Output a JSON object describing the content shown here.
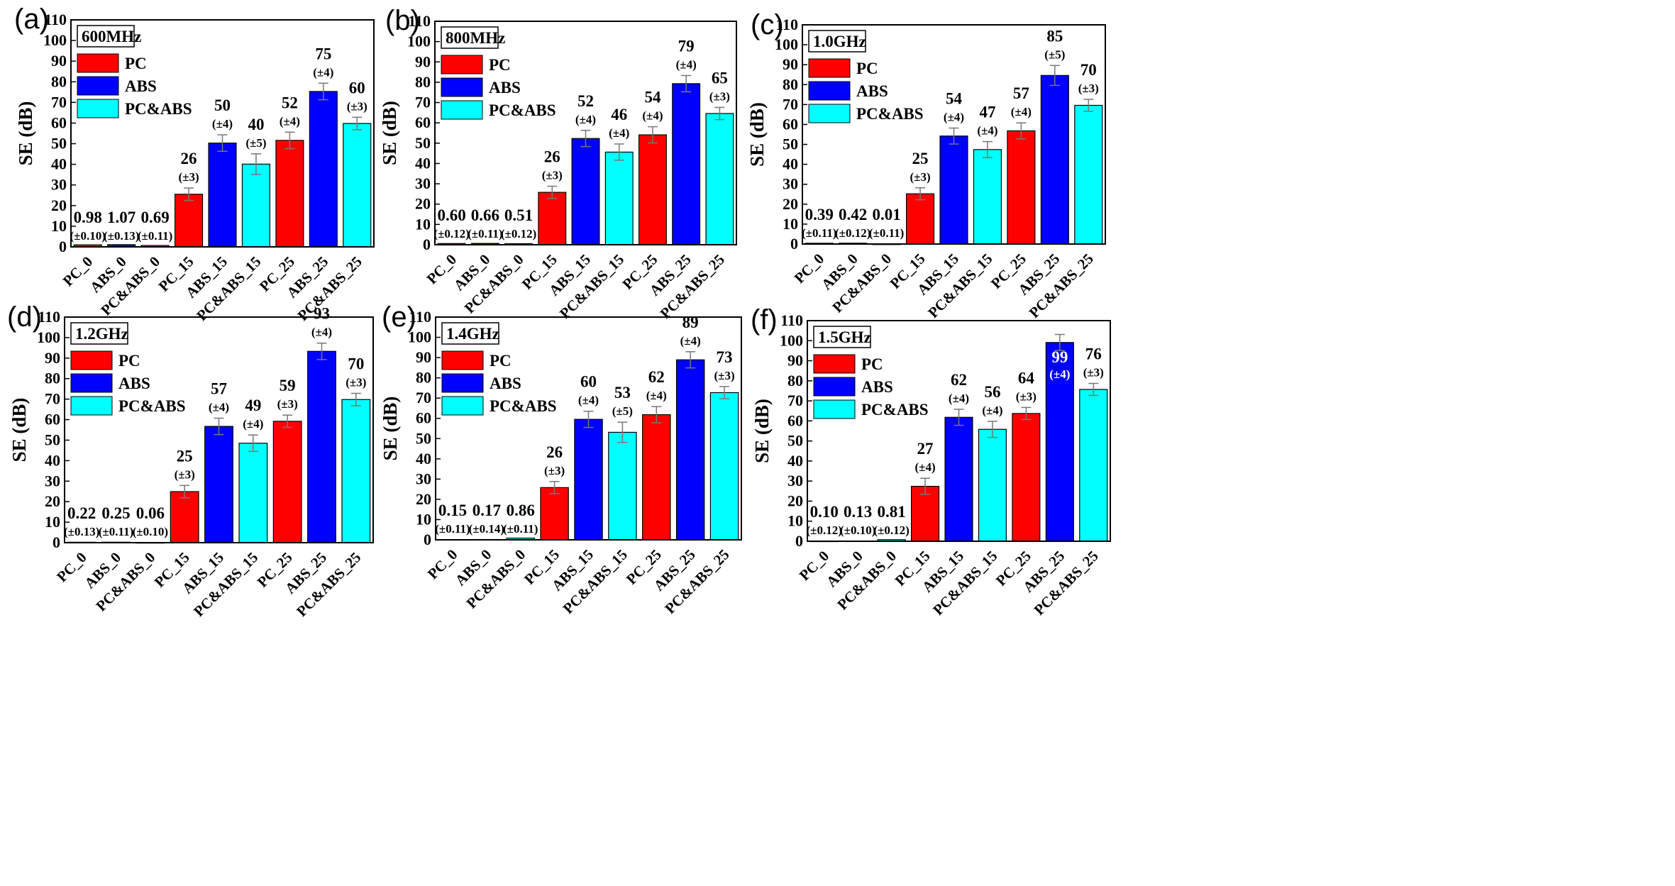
{
  "chart_data": [
    {
      "type": "bar",
      "panel": "(a)",
      "frequency": "600MHz",
      "ylabel": "SE (dB)",
      "ylim": [
        0,
        110
      ],
      "yticks": [
        "0",
        "10",
        "20",
        "30",
        "40",
        "50",
        "60",
        "70",
        "80",
        "90",
        "100",
        "110"
      ],
      "categories": [
        "PC_0",
        "ABS_0",
        "PC&ABS_0",
        "PC_15",
        "ABS_15",
        "PC&ABS_15",
        "PC_25",
        "ABS_25",
        "PC&ABS_25"
      ],
      "materials": [
        "PC",
        "ABS",
        "PC&ABS",
        "PC",
        "ABS",
        "PC&ABS",
        "PC",
        "ABS",
        "PC&ABS"
      ],
      "values": [
        0.98,
        1.07,
        0.69,
        25.5,
        50.3,
        40.1,
        51.6,
        75.3,
        59.8
      ],
      "value_labels": [
        "0.98",
        "1.07",
        "0.69",
        "26",
        "50",
        "40",
        "52",
        "75",
        "60"
      ],
      "error_labels": [
        "(±0.10)",
        "(±0.13)",
        "(±0.11)",
        "(±3)",
        "(±4)",
        "(±5)",
        "(±4)",
        "(±4)",
        "(±3)"
      ],
      "errors": [
        0.1,
        0.13,
        0.11,
        3,
        4,
        5,
        4,
        4,
        3
      ],
      "legend": [
        {
          "name": "PC",
          "color": "#ff0000"
        },
        {
          "name": "ABS",
          "color": "#0000ff"
        },
        {
          "name": "PC&ABS",
          "color": "#00ffff"
        }
      ]
    },
    {
      "type": "bar",
      "panel": "(b)",
      "frequency": "800MHz",
      "ylabel": "SE (dB)",
      "ylim": [
        0,
        110
      ],
      "yticks": [
        "0",
        "10",
        "20",
        "30",
        "40",
        "50",
        "60",
        "70",
        "80",
        "90",
        "100",
        "110"
      ],
      "categories": [
        "PC_0",
        "ABS_0",
        "PC&ABS_0",
        "PC_15",
        "ABS_15",
        "PC&ABS_15",
        "PC_25",
        "ABS_25",
        "PC&ABS_25"
      ],
      "materials": [
        "PC",
        "ABS",
        "PC&ABS",
        "PC",
        "ABS",
        "PC&ABS",
        "PC",
        "ABS",
        "PC&ABS"
      ],
      "values": [
        0.6,
        0.66,
        0.51,
        25.8,
        52.3,
        45.6,
        54.1,
        79.3,
        64.6
      ],
      "value_labels": [
        "0.60",
        "0.66",
        "0.51",
        "26",
        "52",
        "46",
        "54",
        "79",
        "65"
      ],
      "error_labels": [
        "(±0.12)",
        "(±0.11)",
        "(±0.12)",
        "(±3)",
        "(±4)",
        "(±4)",
        "(±4)",
        "(±4)",
        "(±3)"
      ],
      "errors": [
        0.12,
        0.11,
        0.12,
        3,
        4,
        4,
        4,
        4,
        3
      ],
      "legend": [
        {
          "name": "PC",
          "color": "#ff0000"
        },
        {
          "name": "ABS",
          "color": "#0000ff"
        },
        {
          "name": "PC&ABS",
          "color": "#00ffff"
        }
      ]
    },
    {
      "type": "bar",
      "panel": "(c)",
      "frequency": "1.0GHz",
      "ylabel": "SE (dB)",
      "ylim": [
        0,
        110
      ],
      "yticks": [
        "0",
        "10",
        "20",
        "30",
        "40",
        "50",
        "60",
        "70",
        "80",
        "90",
        "100",
        "110"
      ],
      "categories": [
        "PC_0",
        "ABS_0",
        "PC&ABS_0",
        "PC_15",
        "ABS_15",
        "PC&ABS_15",
        "PC_25",
        "ABS_25",
        "PC&ABS_25"
      ],
      "materials": [
        "PC",
        "ABS",
        "PC&ABS",
        "PC",
        "ABS",
        "PC&ABS",
        "PC",
        "ABS",
        "PC&ABS"
      ],
      "values": [
        0.39,
        0.42,
        0.01,
        25.2,
        54.2,
        47.4,
        56.8,
        84.6,
        69.6
      ],
      "value_labels": [
        "0.39",
        "0.42",
        "0.01",
        "25",
        "54",
        "47",
        "57",
        "85",
        "70"
      ],
      "error_labels": [
        "(±0.11)",
        "(±0.12)",
        "(±0.11)",
        "(±3)",
        "(±4)",
        "(±4)",
        "(±4)",
        "(±5)",
        "(±3)"
      ],
      "errors": [
        0.11,
        0.12,
        0.11,
        3,
        4,
        4,
        4,
        5,
        3
      ],
      "legend": [
        {
          "name": "PC",
          "color": "#ff0000"
        },
        {
          "name": "ABS",
          "color": "#0000ff"
        },
        {
          "name": "PC&ABS",
          "color": "#00ffff"
        }
      ]
    },
    {
      "type": "bar",
      "panel": "(d)",
      "frequency": "1.2GHz",
      "ylabel": "SE (dB)",
      "ylim": [
        0,
        110
      ],
      "yticks": [
        "0",
        "10",
        "20",
        "30",
        "40",
        "50",
        "60",
        "70",
        "80",
        "90",
        "100",
        "110"
      ],
      "categories": [
        "PC_0",
        "ABS_0",
        "PC&ABS_0",
        "PC_15",
        "ABS_15",
        "PC&ABS_15",
        "PC_25",
        "ABS_25",
        "PC&ABS_25"
      ],
      "materials": [
        "PC",
        "ABS",
        "PC&ABS",
        "PC",
        "ABS",
        "PC&ABS",
        "PC",
        "ABS",
        "PC&ABS"
      ],
      "values": [
        0.22,
        0.25,
        0.06,
        24.9,
        56.7,
        48.5,
        59.2,
        93.3,
        69.8
      ],
      "value_labels": [
        "0.22",
        "0.25",
        "0.06",
        "25",
        "57",
        "49",
        "59",
        "93",
        "70"
      ],
      "error_labels": [
        "(±0.13)",
        "(±0.11)",
        "(±0.10)",
        "(±3)",
        "(±4)",
        "(±4)",
        "(±3)",
        "(±4)",
        "(±3)"
      ],
      "errors": [
        0.13,
        0.11,
        0.1,
        3,
        4,
        4,
        3,
        4,
        3
      ],
      "legend": [
        {
          "name": "PC",
          "color": "#ff0000"
        },
        {
          "name": "ABS",
          "color": "#0000ff"
        },
        {
          "name": "PC&ABS",
          "color": "#00ffff"
        }
      ]
    },
    {
      "type": "bar",
      "panel": "(e)",
      "frequency": "1.4GHz",
      "ylabel": "SE (dB)",
      "ylim": [
        0,
        110
      ],
      "yticks": [
        "0",
        "10",
        "20",
        "30",
        "40",
        "50",
        "60",
        "70",
        "80",
        "90",
        "100",
        "110"
      ],
      "categories": [
        "PC_0",
        "ABS_0",
        "PC&ABS_0",
        "PC_15",
        "ABS_15",
        "PC&ABS_15",
        "PC_25",
        "ABS_25",
        "PC&ABS_25"
      ],
      "materials": [
        "PC",
        "ABS",
        "PC&ABS",
        "PC",
        "ABS",
        "PC&ABS",
        "PC",
        "ABS",
        "PC&ABS"
      ],
      "values": [
        0.15,
        0.17,
        0.86,
        25.8,
        59.5,
        53.1,
        61.8,
        88.9,
        72.7
      ],
      "value_labels": [
        "0.15",
        "0.17",
        "0.86",
        "26",
        "60",
        "53",
        "62",
        "89",
        "73"
      ],
      "error_labels": [
        "(±0.11)",
        "(±0.14)",
        "(±0.11)",
        "(±3)",
        "(±4)",
        "(±5)",
        "(±4)",
        "(±4)",
        "(±3)"
      ],
      "errors": [
        0.11,
        0.14,
        0.11,
        3,
        4,
        5,
        4,
        4,
        3
      ],
      "legend": [
        {
          "name": "PC",
          "color": "#ff0000"
        },
        {
          "name": "ABS",
          "color": "#0000ff"
        },
        {
          "name": "PC&ABS",
          "color": "#00ffff"
        }
      ]
    },
    {
      "type": "bar",
      "panel": "(f)",
      "frequency": "1.5GHz",
      "ylabel": "SE (dB)",
      "ylim": [
        0,
        110
      ],
      "yticks": [
        "0",
        "10",
        "20",
        "30",
        "40",
        "50",
        "60",
        "70",
        "80",
        "90",
        "100",
        "110"
      ],
      "categories": [
        "PC_0",
        "ABS_0",
        "PC&ABS_0",
        "PC_15",
        "ABS_15",
        "PC&ABS_15",
        "PC_25",
        "ABS_25",
        "PC&ABS_25"
      ],
      "materials": [
        "PC",
        "ABS",
        "PC&ABS",
        "PC",
        "ABS",
        "PC&ABS",
        "PC",
        "ABS",
        "PC&ABS"
      ],
      "values": [
        0.1,
        0.13,
        0.81,
        27.4,
        61.8,
        55.8,
        63.7,
        99.1,
        75.7
      ],
      "value_labels": [
        "0.10",
        "0.13",
        "0.81",
        "27",
        "62",
        "56",
        "64",
        "99",
        "76"
      ],
      "error_labels": [
        "(±0.12)",
        "(±0.10)",
        "(±0.12)",
        "(±4)",
        "(±4)",
        "(±4)",
        "(±3)",
        "(±4)",
        "(±3)"
      ],
      "errors": [
        0.12,
        0.1,
        0.12,
        4,
        4,
        4,
        3,
        4,
        3
      ],
      "inside_label_index": 7,
      "legend": [
        {
          "name": "PC",
          "color": "#ff0000"
        },
        {
          "name": "ABS",
          "color": "#0000ff"
        },
        {
          "name": "PC&ABS",
          "color": "#00ffff"
        }
      ]
    }
  ]
}
